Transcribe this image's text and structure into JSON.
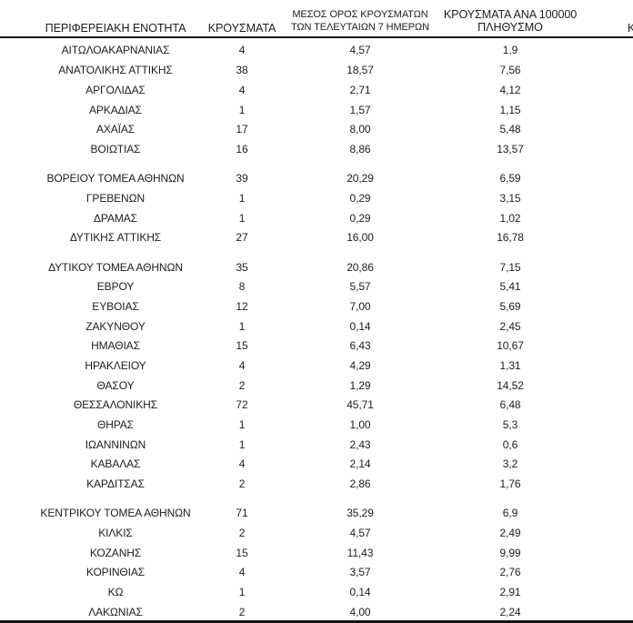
{
  "page": {
    "background": "#ffffff",
    "text_color": "#1d1d20",
    "line_color": "#151515"
  },
  "table": {
    "headers": {
      "col1": "ΠΕΡΙΦΕΡΕΙΑΚΗ ΕΝΟΤΗΤΑ",
      "col2": "ΚΡΟΥΣΜΑΤΑ",
      "col3_line1": "ΜΕΣΟΣ ΟΡΟΣ ΚΡΟΥΣΜΑΤΩΝ",
      "col3_line2": "ΤΩΝ ΤΕΛΕΥΤΑΙΩΝ 7 ΗΜΕΡΩΝ",
      "col4_line1": "ΚΡΟΥΣΜΑΤΑ ΑΝΑ 100000",
      "col4_line2": "ΠΛΗΘΥΣΜΟ",
      "col5_partial": "Κ"
    },
    "groups": [
      {
        "rows": [
          [
            "ΑΙΤΩΛΟΑΚΑΡΝΑΝΙΑΣ",
            "4",
            "4,57",
            "1,9"
          ],
          [
            "ΑΝΑΤΟΛΙΚΗΣ ΑΤΤΙΚΗΣ",
            "38",
            "18,57",
            "7,56"
          ],
          [
            "ΑΡΓΟΛΙΔΑΣ",
            "4",
            "2,71",
            "4,12"
          ],
          [
            "ΑΡΚΑΔΙΑΣ",
            "1",
            "1,57",
            "1,15"
          ],
          [
            "ΑΧΑΪΑΣ",
            "17",
            "8,00",
            "5,48"
          ],
          [
            "ΒΟΙΩΤΙΑΣ",
            "16",
            "8,86",
            "13,57"
          ]
        ]
      },
      {
        "rows": [
          [
            "ΒΟΡΕΙΟΥ ΤΟΜΕΑ ΑΘΗΝΩΝ",
            "39",
            "20,29",
            "6,59"
          ],
          [
            "ΓΡΕΒΕΝΩΝ",
            "1",
            "0,29",
            "3,15"
          ],
          [
            "ΔΡΑΜΑΣ",
            "1",
            "0,29",
            "1,02"
          ],
          [
            "ΔΥΤΙΚΗΣ ΑΤΤΙΚΗΣ",
            "27",
            "16,00",
            "16,78"
          ]
        ]
      },
      {
        "rows": [
          [
            "ΔΥΤΙΚΟΥ ΤΟΜΕΑ ΑΘΗΝΩΝ",
            "35",
            "20,86",
            "7,15"
          ],
          [
            "ΕΒΡΟΥ",
            "8",
            "5,57",
            "5,41"
          ],
          [
            "ΕΥΒΟΙΑΣ",
            "12",
            "7,00",
            "5,69"
          ],
          [
            "ΖΑΚΥΝΘΟΥ",
            "1",
            "0,14",
            "2,45"
          ],
          [
            "ΗΜΑΘΙΑΣ",
            "15",
            "6,43",
            "10,67"
          ],
          [
            "ΗΡΑΚΛΕΙΟΥ",
            "4",
            "4,29",
            "1,31"
          ],
          [
            "ΘΑΣΟΥ",
            "2",
            "1,29",
            "14,52"
          ],
          [
            "ΘΕΣΣΑΛΟΝΙΚΗΣ",
            "72",
            "45,71",
            "6,48"
          ],
          [
            "ΘΗΡΑΣ",
            "1",
            "1,00",
            "5,3"
          ],
          [
            "ΙΩΑΝΝΙΝΩΝ",
            "1",
            "2,43",
            "0,6"
          ],
          [
            "ΚΑΒΑΛΑΣ",
            "4",
            "2,14",
            "3,2"
          ],
          [
            "ΚΑΡΔΙΤΣΑΣ",
            "2",
            "2,86",
            "1,76"
          ]
        ]
      },
      {
        "rows": [
          [
            "ΚΕΝΤΡΙΚΟΥ ΤΟΜΕΑ ΑΘΗΝΩΝ",
            "71",
            "35,29",
            "6,9"
          ],
          [
            "ΚΙΛΚΙΣ",
            "2",
            "4,57",
            "2,49"
          ],
          [
            "ΚΟΖΑΝΗΣ",
            "15",
            "11,43",
            "9,99"
          ],
          [
            "ΚΟΡΙΝΘΙΑΣ",
            "4",
            "3,57",
            "2,76"
          ],
          [
            "ΚΩ",
            "1",
            "0,14",
            "2,91"
          ],
          [
            "ΛΑΚΩΝΙΑΣ",
            "2",
            "4,00",
            "2,24"
          ]
        ]
      }
    ]
  }
}
